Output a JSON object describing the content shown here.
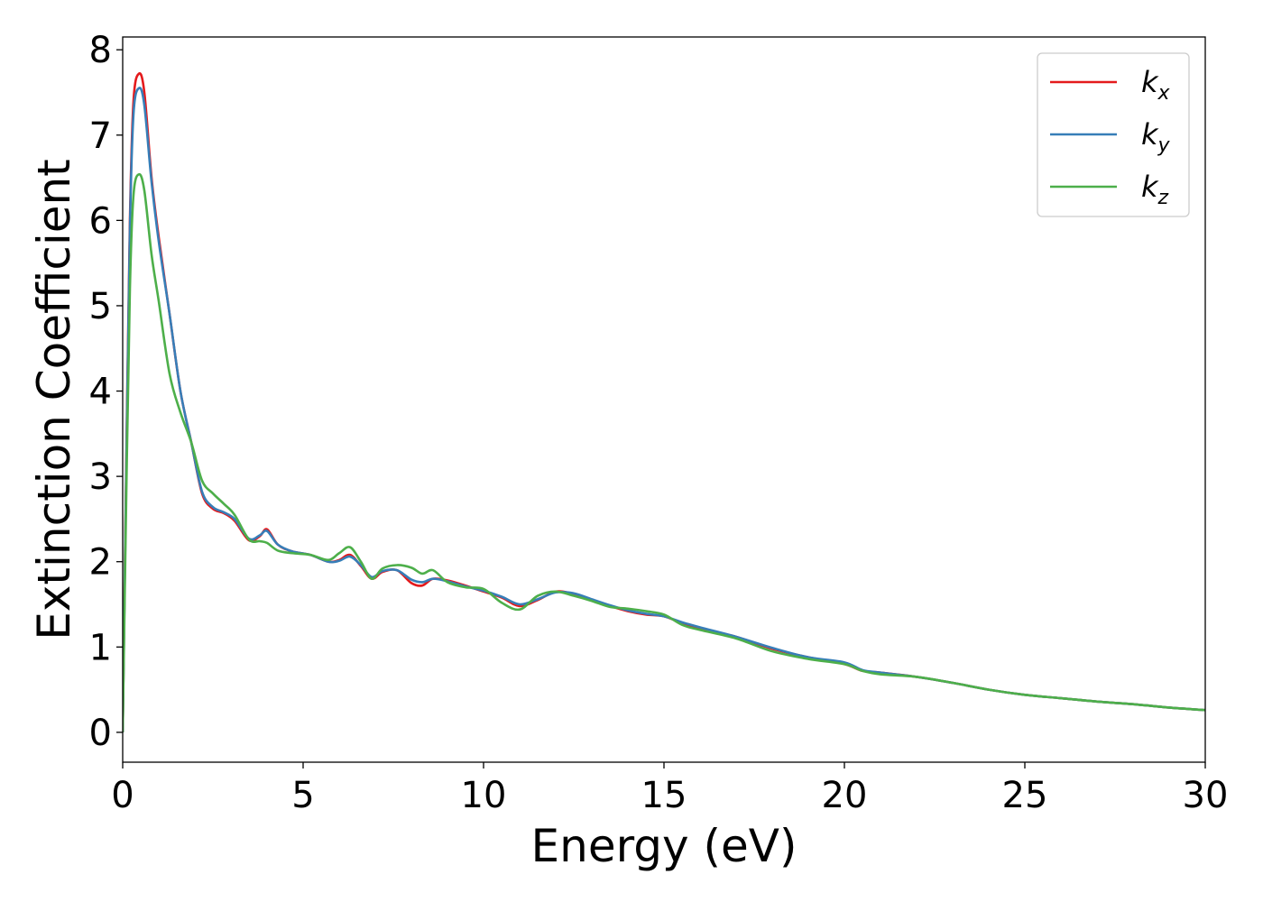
{
  "chart_data": {
    "type": "line",
    "title": "",
    "xlabel": "Energy (eV)",
    "ylabel": "Extinction Coefficient",
    "xlim": [
      0,
      30
    ],
    "ylim": [
      -0.35,
      8.15
    ],
    "xticks": [
      0,
      5,
      10,
      15,
      20,
      25,
      30
    ],
    "xtick_labels": [
      "0",
      "5",
      "10",
      "15",
      "20",
      "25",
      "30"
    ],
    "yticks": [
      0,
      1,
      2,
      3,
      4,
      5,
      6,
      7,
      8
    ],
    "ytick_labels": [
      "0",
      "1",
      "2",
      "3",
      "4",
      "5",
      "6",
      "7",
      "8"
    ],
    "grid": false,
    "legend_position": "top-right",
    "series": [
      {
        "name": "k_x",
        "label_base": "k",
        "label_sub": "x",
        "color": "#e41a1c",
        "x": [
          0,
          0.1,
          0.2,
          0.3,
          0.45,
          0.6,
          0.8,
          1.0,
          1.3,
          1.6,
          1.9,
          2.2,
          2.5,
          2.8,
          3.1,
          3.5,
          3.8,
          4.0,
          4.3,
          4.7,
          5.2,
          5.7,
          6.0,
          6.3,
          6.6,
          6.9,
          7.2,
          7.6,
          8.0,
          8.3,
          8.6,
          9.0,
          9.5,
          10.0,
          10.5,
          11.0,
          11.5,
          12.0,
          12.5,
          13.0,
          13.5,
          14.0,
          14.5,
          15.0,
          15.5,
          16.0,
          17.0,
          18.0,
          19.0,
          20.0,
          20.5,
          21.0,
          22.0,
          23.0,
          24.0,
          25.0,
          26.0,
          27.0,
          28.0,
          29.0,
          30.0
        ],
        "y": [
          0,
          3.2,
          6.0,
          7.4,
          7.72,
          7.5,
          6.5,
          5.8,
          4.9,
          4.0,
          3.4,
          2.8,
          2.62,
          2.57,
          2.48,
          2.25,
          2.3,
          2.38,
          2.2,
          2.12,
          2.08,
          2.0,
          2.02,
          2.08,
          1.95,
          1.8,
          1.88,
          1.9,
          1.75,
          1.72,
          1.8,
          1.78,
          1.72,
          1.65,
          1.58,
          1.48,
          1.55,
          1.65,
          1.62,
          1.55,
          1.48,
          1.42,
          1.38,
          1.36,
          1.28,
          1.22,
          1.12,
          0.98,
          0.88,
          0.8,
          0.72,
          0.7,
          0.65,
          0.58,
          0.5,
          0.44,
          0.4,
          0.36,
          0.33,
          0.29,
          0.26
        ]
      },
      {
        "name": "k_y",
        "label_base": "k",
        "label_sub": "y",
        "color": "#377eb8",
        "x": [
          0,
          0.1,
          0.2,
          0.3,
          0.45,
          0.6,
          0.8,
          1.0,
          1.3,
          1.6,
          1.9,
          2.2,
          2.5,
          2.8,
          3.1,
          3.5,
          3.8,
          4.0,
          4.3,
          4.7,
          5.2,
          5.7,
          6.0,
          6.3,
          6.6,
          6.9,
          7.2,
          7.6,
          8.0,
          8.3,
          8.6,
          9.0,
          9.5,
          10.0,
          10.5,
          11.0,
          11.5,
          12.0,
          12.5,
          13.0,
          13.5,
          14.0,
          14.5,
          15.0,
          15.5,
          16.0,
          17.0,
          18.0,
          19.0,
          20.0,
          20.5,
          21.0,
          22.0,
          23.0,
          24.0,
          25.0,
          26.0,
          27.0,
          28.0,
          29.0,
          30.0
        ],
        "y": [
          0,
          3.1,
          5.9,
          7.25,
          7.55,
          7.35,
          6.45,
          5.75,
          4.9,
          4.0,
          3.4,
          2.82,
          2.64,
          2.58,
          2.5,
          2.27,
          2.31,
          2.36,
          2.2,
          2.12,
          2.08,
          2.0,
          2.01,
          2.06,
          1.96,
          1.82,
          1.89,
          1.9,
          1.79,
          1.76,
          1.8,
          1.77,
          1.71,
          1.66,
          1.59,
          1.5,
          1.56,
          1.64,
          1.63,
          1.56,
          1.49,
          1.43,
          1.39,
          1.36,
          1.29,
          1.23,
          1.12,
          0.99,
          0.88,
          0.82,
          0.73,
          0.7,
          0.65,
          0.58,
          0.5,
          0.44,
          0.4,
          0.36,
          0.33,
          0.29,
          0.26
        ]
      },
      {
        "name": "k_z",
        "label_base": "k",
        "label_sub": "z",
        "color": "#4daf4a",
        "x": [
          0,
          0.1,
          0.2,
          0.3,
          0.45,
          0.6,
          0.8,
          1.0,
          1.3,
          1.6,
          1.9,
          2.2,
          2.5,
          2.8,
          3.1,
          3.5,
          3.8,
          4.0,
          4.3,
          4.7,
          5.2,
          5.7,
          6.0,
          6.3,
          6.6,
          6.9,
          7.2,
          7.6,
          8.0,
          8.3,
          8.6,
          9.0,
          9.5,
          10.0,
          10.5,
          11.0,
          11.5,
          12.0,
          12.5,
          13.0,
          13.5,
          14.0,
          14.5,
          15.0,
          15.5,
          16.0,
          17.0,
          18.0,
          19.0,
          20.0,
          20.5,
          21.0,
          22.0,
          23.0,
          24.0,
          25.0,
          26.0,
          27.0,
          28.0,
          29.0,
          30.0
        ],
        "y": [
          0,
          2.8,
          5.2,
          6.3,
          6.54,
          6.35,
          5.6,
          5.05,
          4.2,
          3.75,
          3.4,
          2.95,
          2.8,
          2.68,
          2.55,
          2.26,
          2.24,
          2.22,
          2.13,
          2.1,
          2.08,
          2.02,
          2.1,
          2.17,
          2.0,
          1.8,
          1.92,
          1.96,
          1.93,
          1.86,
          1.9,
          1.76,
          1.7,
          1.68,
          1.52,
          1.44,
          1.6,
          1.65,
          1.6,
          1.54,
          1.47,
          1.45,
          1.42,
          1.38,
          1.26,
          1.2,
          1.1,
          0.95,
          0.86,
          0.8,
          0.72,
          0.68,
          0.65,
          0.58,
          0.5,
          0.44,
          0.4,
          0.36,
          0.33,
          0.29,
          0.26
        ]
      }
    ]
  }
}
